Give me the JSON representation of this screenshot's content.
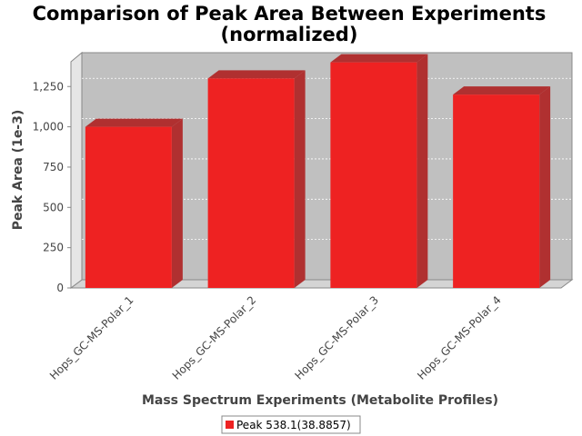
{
  "chart_data": {
    "type": "bar",
    "title": "Comparison of Peak Area Between Experiments",
    "subtitle": "(normalized)",
    "xlabel": "Mass Spectrum Experiments (Metabolite Profiles)",
    "ylabel": "Peak Area (1e-3)",
    "categories": [
      "Hops_GC-MS-Polar_1",
      "Hops_GC-MS-Polar_2",
      "Hops_GC-MS-Polar_3",
      "Hops_GC-MS-Polar_4"
    ],
    "series": [
      {
        "name": "Peak 538.1(38.8857)",
        "values": [
          1000,
          1300,
          1400,
          1200
        ],
        "color": "#ee2222"
      }
    ],
    "yticks": [
      0,
      250,
      500,
      750,
      1000,
      1250
    ],
    "ytick_labels": [
      "0",
      "250",
      "500",
      "750",
      "1,000",
      "1,250"
    ],
    "ylim": [
      0,
      1460
    ],
    "grid": true,
    "legend_position": "bottom",
    "plot_background": "#c0c0c0",
    "bar_color": "#ee2222",
    "bar_side_color": "#b03030"
  }
}
